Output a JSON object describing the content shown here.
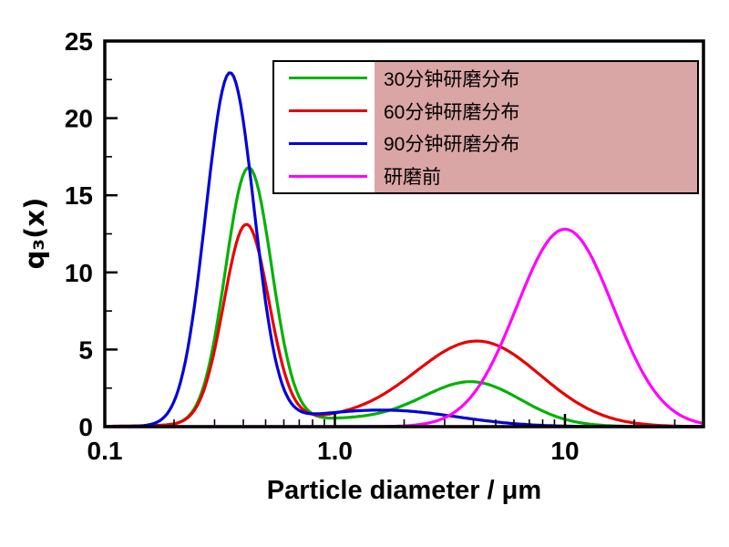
{
  "figure": {
    "background": "#ffffff"
  },
  "legend": {
    "highlight_color": "#d9a5a5",
    "border_color": "#000000"
  },
  "chart_data": {
    "type": "line",
    "title": "",
    "xlabel": "Particle diameter / μm",
    "ylabel": "q₃(x)",
    "x_scale": "log",
    "grid": false,
    "legend_position": "top-center",
    "axes": {
      "xlim": [
        0.1,
        40
      ],
      "ylim": [
        0,
        25
      ],
      "x_major_ticks": [
        {
          "v": 0.1,
          "label": "0.1"
        },
        {
          "v": 1,
          "label": "1.0"
        },
        {
          "v": 10,
          "label": "10"
        }
      ],
      "x_minor_ticks": [
        0.2,
        0.3,
        0.4,
        0.5,
        0.6,
        0.7,
        0.8,
        0.9,
        2,
        3,
        4,
        5,
        6,
        7,
        8,
        9,
        20,
        30,
        40
      ],
      "y_major_ticks": [
        {
          "v": 0,
          "label": "0"
        },
        {
          "v": 5,
          "label": "5"
        },
        {
          "v": 10,
          "label": "10"
        },
        {
          "v": 15,
          "label": "15"
        },
        {
          "v": 20,
          "label": "20"
        },
        {
          "v": 25,
          "label": "25"
        }
      ],
      "y_minor_ticks": [
        2.5,
        7.5,
        12.5,
        17.5,
        22.5
      ]
    },
    "series": [
      {
        "id": "30min",
        "name": "30分钟研磨分布",
        "color": "#00b200",
        "peak_summary": [
          {
            "x": 0.42,
            "q3": 16.5
          },
          {
            "x": 4.0,
            "q3": 2.7
          }
        ],
        "log10_gaussians": [
          {
            "amp": 16.5,
            "center": -0.375,
            "sigma": 0.1
          },
          {
            "amp": 2.7,
            "center": 0.6,
            "sigma": 0.21
          },
          {
            "amp": 0.5,
            "center": 0.05,
            "sigma": 0.42
          }
        ]
      },
      {
        "id": "60min",
        "name": "60分钟研磨分布",
        "color": "#e80000",
        "peak_summary": [
          {
            "x": 0.41,
            "q3": 12.8
          },
          {
            "x": 4.2,
            "q3": 5.5
          }
        ],
        "log10_gaussians": [
          {
            "amp": 12.8,
            "center": -0.385,
            "sigma": 0.098
          },
          {
            "amp": 5.4,
            "center": 0.625,
            "sigma": 0.27
          },
          {
            "amp": 0.5,
            "center": 0.0,
            "sigma": 0.4
          }
        ]
      },
      {
        "id": "90min",
        "name": "90分钟研磨分布",
        "color": "#0000dd",
        "peak_summary": [
          {
            "x": 0.35,
            "q3": 22.7
          },
          {
            "x": 2.0,
            "q3": 0.8
          }
        ],
        "log10_gaussians": [
          {
            "amp": 22.7,
            "center": -0.456,
            "sigma": 0.105
          },
          {
            "amp": 0.65,
            "center": 0.3,
            "sigma": 0.28
          },
          {
            "amp": 0.55,
            "center": 0.0,
            "sigma": 0.35
          }
        ]
      },
      {
        "id": "before",
        "name": "研磨前",
        "color": "#ff00ff",
        "peak_summary": [
          {
            "x": 10.0,
            "q3": 12.8
          }
        ],
        "log10_gaussians": [
          {
            "amp": 12.8,
            "center": 1.0,
            "sigma": 0.21
          }
        ]
      }
    ]
  }
}
